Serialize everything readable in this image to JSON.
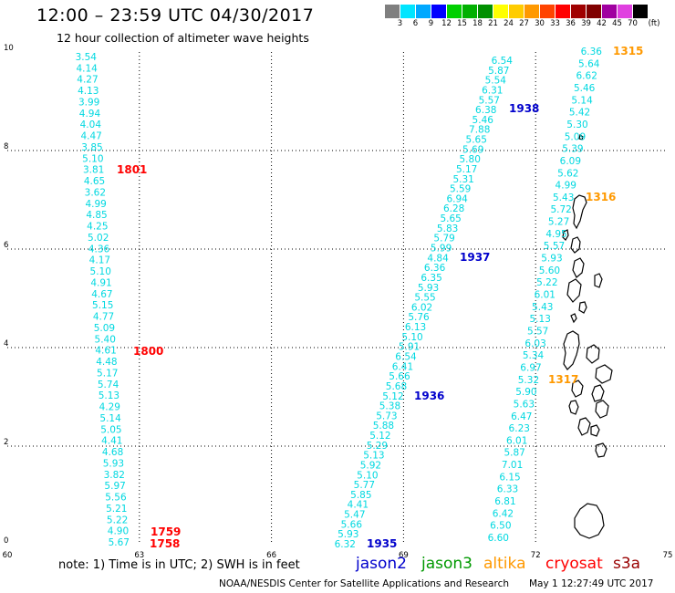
{
  "header": {
    "title": "12:00 – 23:59 UTC 04/30/2017",
    "subtitle": "12 hour collection of altimeter wave heights"
  },
  "color_scale": {
    "unit": "(ft)",
    "bins": [
      {
        "label": "3",
        "color": "#7f7f7f"
      },
      {
        "label": "6",
        "color": "#00e5ff"
      },
      {
        "label": "9",
        "color": "#00a8ff"
      },
      {
        "label": "12",
        "color": "#0000ff"
      },
      {
        "label": "15",
        "color": "#00d000"
      },
      {
        "label": "18",
        "color": "#00b000"
      },
      {
        "label": "21",
        "color": "#009000"
      },
      {
        "label": "24",
        "color": "#ffff00"
      },
      {
        "label": "27",
        "color": "#ffcc00"
      },
      {
        "label": "30",
        "color": "#ff9900"
      },
      {
        "label": "33",
        "color": "#ff4400"
      },
      {
        "label": "36",
        "color": "#ff0000"
      },
      {
        "label": "39",
        "color": "#a00000"
      },
      {
        "label": "42",
        "color": "#800000"
      },
      {
        "label": "45",
        "color": "#a000a0"
      },
      {
        "label": "70",
        "color": "#e040e0"
      },
      {
        "label": "",
        "color": "#000000"
      }
    ]
  },
  "axes": {
    "x_ticks": [
      "60",
      "63",
      "66",
      "69",
      "72",
      "75"
    ],
    "y_ticks": [
      "0",
      "2",
      "4",
      "6",
      "8",
      "10"
    ]
  },
  "tracks": [
    {
      "satellite": "s3a",
      "values": [
        "3.54",
        "4.14",
        "4.27",
        "4.13",
        "3.99",
        "4.94",
        "4.04",
        "4.47",
        "3.85",
        "5.10",
        "3.81",
        "4.65",
        "3.62",
        "4.99",
        "4.85",
        "4.25",
        "5.02",
        "4.36",
        "4.17",
        "5.10",
        "4.91",
        "4.67",
        "5.15",
        "4.77",
        "5.09",
        "5.40",
        "4.61",
        "4.48",
        "5.17",
        "5.74",
        "5.13",
        "4.29",
        "5.14",
        "5.05",
        "4.41",
        "4.68",
        "5.93",
        "3.82",
        "5.97",
        "5.56",
        "5.21",
        "5.22",
        "4.90",
        "5.67"
      ]
    },
    {
      "satellite": "jason2",
      "values": [
        "6.54",
        "5.87",
        "5.54",
        "6.31",
        "5.57",
        "6.38",
        "5.46",
        "7.88",
        "5.65",
        "5.69",
        "5.80",
        "5.17",
        "5.31",
        "5.59",
        "6.94",
        "6.28",
        "5.65",
        "5.83",
        "5.79",
        "5.99",
        "4.84",
        "6.36",
        "6.35",
        "5.93",
        "5.55",
        "6.02",
        "5.76",
        "6.13",
        "5.10",
        "5.91",
        "6.54",
        "6.41",
        "5.66",
        "5.68",
        "5.12",
        "5.38",
        "5.73",
        "5.88",
        "5.12",
        "5.29",
        "5.13",
        "5.92",
        "5.10",
        "5.77",
        "5.85",
        "4.41",
        "5.47",
        "5.66",
        "5.93",
        "6.32"
      ]
    },
    {
      "satellite": "altika",
      "values": [
        "6.36",
        "5.64",
        "6.62",
        "5.46",
        "5.14",
        "5.42",
        "5.30",
        "5.09",
        "5.39",
        "6.09",
        "5.62",
        "4.99",
        "5.43",
        "5.72",
        "5.27",
        "4.95",
        "5.57",
        "5.93",
        "5.60",
        "5.22",
        "6.01",
        "5.43",
        "5.13",
        "5.57",
        "6.03",
        "5.34",
        "6.97",
        "5.32",
        "5.90",
        "5.63",
        "6.47",
        "6.23",
        "6.01",
        "5.87",
        "7.01",
        "6.15",
        "6.33",
        "6.81",
        "6.42",
        "6.50",
        "6.60"
      ]
    }
  ],
  "time_labels": [
    {
      "text": "1801",
      "color": "#ff0000"
    },
    {
      "text": "1800",
      "color": "#ff0000"
    },
    {
      "text": "1759",
      "color": "#ff0000"
    },
    {
      "text": "1758",
      "color": "#ff0000"
    },
    {
      "text": "1938",
      "color": "#0000cc"
    },
    {
      "text": "1937",
      "color": "#0000cc"
    },
    {
      "text": "1936",
      "color": "#0000cc"
    },
    {
      "text": "1935",
      "color": "#0000cc"
    },
    {
      "text": "1315",
      "color": "#ff9900"
    },
    {
      "text": "1316",
      "color": "#ff9900"
    },
    {
      "text": "1317",
      "color": "#ff9900"
    }
  ],
  "note": "note:  1) Time is in UTC;  2) SWH is in feet",
  "legend": [
    {
      "name": "jason2",
      "color": "#0000cc"
    },
    {
      "name": "jason3",
      "color": "#009900"
    },
    {
      "name": "altika",
      "color": "#ff9900"
    },
    {
      "name": "cryosat",
      "color": "#ff0000"
    },
    {
      "name": "s3a",
      "color": "#990000"
    }
  ],
  "footer": {
    "credit": "NOAA/NESDIS Center for Satellite Applications and Research",
    "timestamp": "May  1 12:27:49 UTC 2017"
  }
}
